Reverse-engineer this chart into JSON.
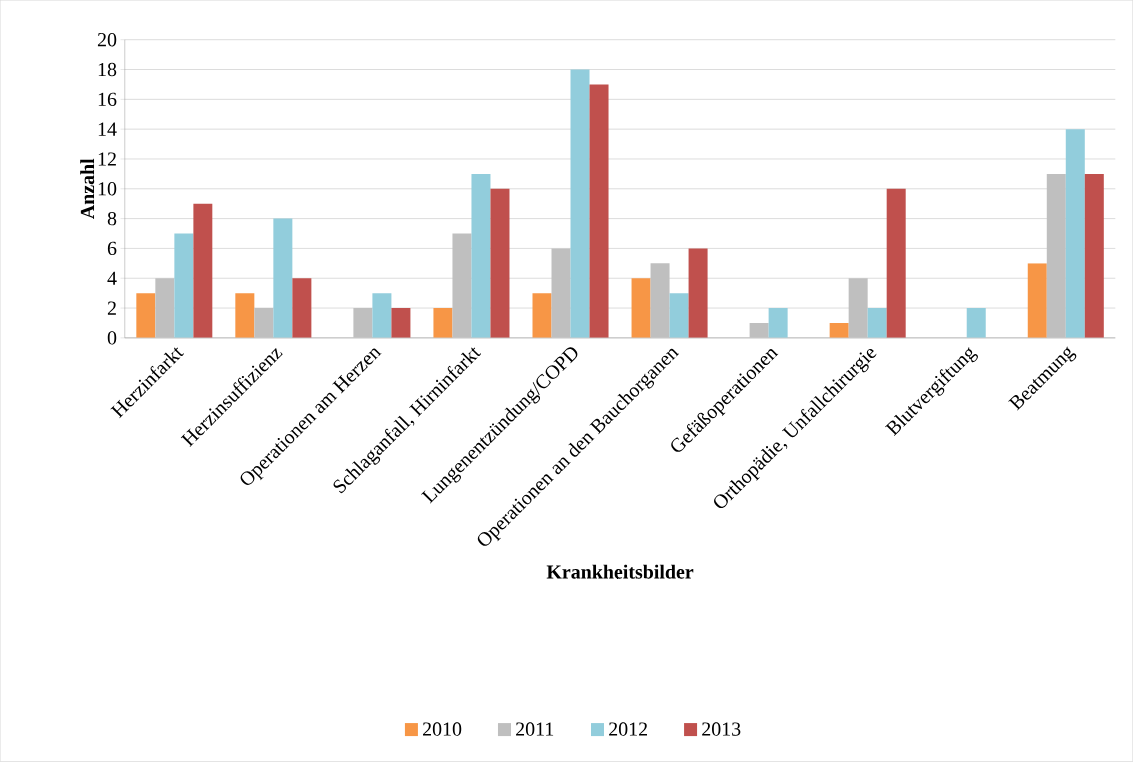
{
  "chart_data": {
    "type": "bar",
    "xlabel": "Krankheitsbilder",
    "ylabel": "Anzahl",
    "categories": [
      "Herzinfarkt",
      "Herzinsuffizienz",
      "Operationen am Herzen",
      "Schlaganfall, Hirninfarkt",
      "Lungenentzündung/COPD",
      "Operationen an den Bauchorganen",
      "Gefäßoperationen",
      "Orthopädie, Unfallchirurgie",
      "Blutvergiftung",
      "Beatmung"
    ],
    "series": [
      {
        "name": "2010",
        "color": "#f79646",
        "values": [
          3,
          3,
          null,
          2,
          3,
          4,
          null,
          1,
          null,
          5
        ]
      },
      {
        "name": "2011",
        "color": "#bfbfbf",
        "values": [
          4,
          2,
          2,
          7,
          6,
          5,
          1,
          4,
          null,
          11
        ]
      },
      {
        "name": "2012",
        "color": "#92cddc",
        "values": [
          7,
          8,
          3,
          11,
          18,
          3,
          2,
          2,
          2,
          14
        ]
      },
      {
        "name": "2013",
        "color": "#c0504d",
        "values": [
          9,
          4,
          2,
          10,
          17,
          6,
          null,
          10,
          null,
          11
        ]
      }
    ],
    "ylim": [
      0,
      20
    ],
    "yticks": [
      0,
      2,
      4,
      6,
      8,
      10,
      12,
      14,
      16,
      18,
      20
    ],
    "grid": "y",
    "legend": "bottom"
  }
}
